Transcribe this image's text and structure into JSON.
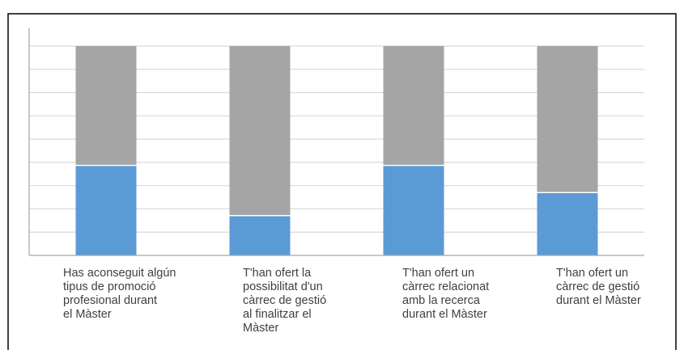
{
  "chart_data": {
    "type": "bar",
    "stacked": true,
    "title": "",
    "xlabel": "",
    "ylabel": "",
    "ylim": [
      0,
      100
    ],
    "grid": true,
    "legend": "none",
    "categories": [
      [
        "Has aconseguit algún",
        "tipus de promoció",
        "profesional durant",
        "el Màster"
      ],
      [
        "T'han ofert la",
        "possibilitat d'un",
        "càrrec de gestió",
        "al finalitzar el",
        "Màster"
      ],
      [
        "T'han ofert un",
        "càrrec relacionat",
        "amb la recerca",
        "durant el Màster"
      ],
      [
        "T'han ofert un",
        "càrrec de gestió",
        "durant  el Màster"
      ]
    ],
    "series": [
      {
        "values": [
          43,
          19,
          43,
          30
        ],
        "color": "#5B9BD5"
      },
      {
        "values": [
          57,
          81,
          57,
          70
        ],
        "color": "#A5A5A5"
      }
    ]
  }
}
